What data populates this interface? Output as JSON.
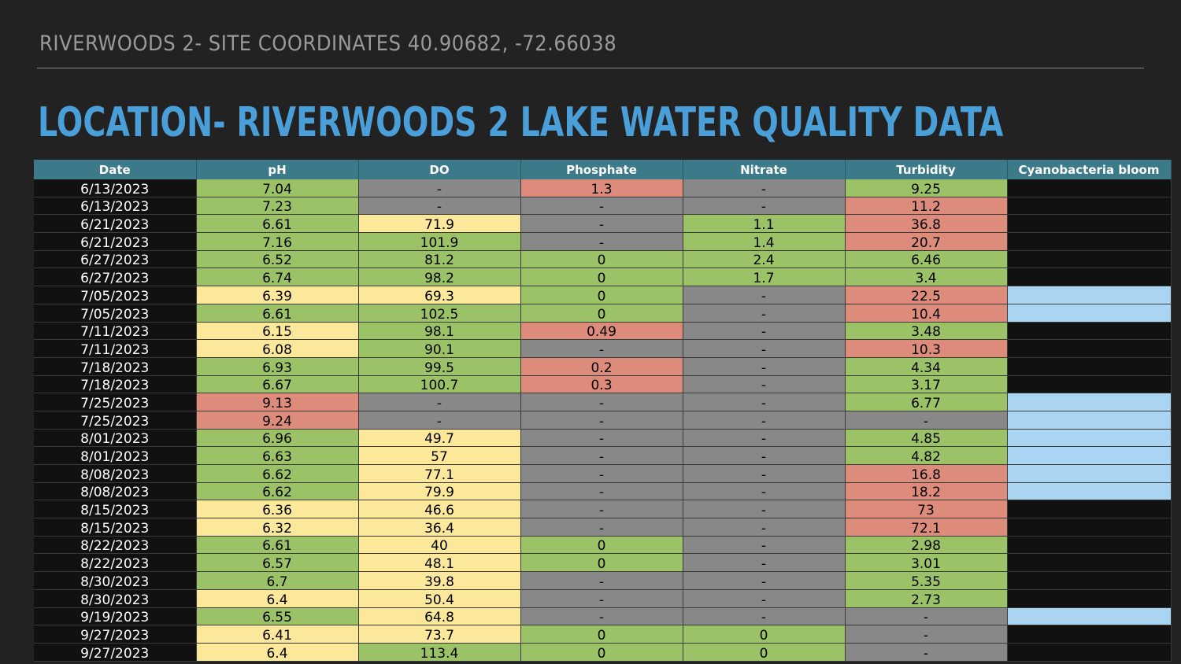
{
  "header": {
    "subtitle": "RIVERWOODS 2- SITE COORDINATES 40.90682, -72.66038",
    "title": "LOCATION- RIVERWOODS 2 LAKE WATER QUALITY DATA"
  },
  "status_colors": {
    "g": "#9bc266",
    "y": "#fbe89a",
    "r": "#dd8b7b",
    "x": "#888888",
    "b": "#a9d5f3",
    "k": "#111111"
  },
  "table": {
    "columns": [
      "Date",
      "pH",
      "DO",
      "Phosphate",
      "Nitrate",
      "Turbidity",
      "Cyanobacteria bloom"
    ],
    "rows": [
      {
        "date": "6/13/2023",
        "ph": "7.04",
        "ph_c": "g",
        "do": "-",
        "do_c": "x",
        "phos": "1.3",
        "phos_c": "r",
        "nit": "-",
        "nit_c": "x",
        "turb": "9.25",
        "turb_c": "g",
        "cyano": "",
        "cyano_c": "k"
      },
      {
        "date": "6/13/2023",
        "ph": "7.23",
        "ph_c": "g",
        "do": "-",
        "do_c": "x",
        "phos": "-",
        "phos_c": "x",
        "nit": "-",
        "nit_c": "x",
        "turb": "11.2",
        "turb_c": "r",
        "cyano": "",
        "cyano_c": "k"
      },
      {
        "date": "6/21/2023",
        "ph": "6.61",
        "ph_c": "g",
        "do": "71.9",
        "do_c": "y",
        "phos": "-",
        "phos_c": "x",
        "nit": "1.1",
        "nit_c": "g",
        "turb": "36.8",
        "turb_c": "r",
        "cyano": "",
        "cyano_c": "k"
      },
      {
        "date": "6/21/2023",
        "ph": "7.16",
        "ph_c": "g",
        "do": "101.9",
        "do_c": "g",
        "phos": "-",
        "phos_c": "x",
        "nit": "1.4",
        "nit_c": "g",
        "turb": "20.7",
        "turb_c": "r",
        "cyano": "",
        "cyano_c": "k"
      },
      {
        "date": "6/27/2023",
        "ph": "6.52",
        "ph_c": "g",
        "do": "81.2",
        "do_c": "g",
        "phos": "0",
        "phos_c": "g",
        "nit": "2.4",
        "nit_c": "g",
        "turb": "6.46",
        "turb_c": "g",
        "cyano": "",
        "cyano_c": "k"
      },
      {
        "date": "6/27/2023",
        "ph": "6.74",
        "ph_c": "g",
        "do": "98.2",
        "do_c": "g",
        "phos": "0",
        "phos_c": "g",
        "nit": "1.7",
        "nit_c": "g",
        "turb": "3.4",
        "turb_c": "g",
        "cyano": "",
        "cyano_c": "k"
      },
      {
        "date": "7/05/2023",
        "ph": "6.39",
        "ph_c": "y",
        "do": "69.3",
        "do_c": "y",
        "phos": "0",
        "phos_c": "g",
        "nit": "-",
        "nit_c": "x",
        "turb": "22.5",
        "turb_c": "r",
        "cyano": "",
        "cyano_c": "b"
      },
      {
        "date": "7/05/2023",
        "ph": "6.61",
        "ph_c": "g",
        "do": "102.5",
        "do_c": "g",
        "phos": "0",
        "phos_c": "g",
        "nit": "-",
        "nit_c": "x",
        "turb": "10.4",
        "turb_c": "r",
        "cyano": "",
        "cyano_c": "b"
      },
      {
        "date": "7/11/2023",
        "ph": "6.15",
        "ph_c": "y",
        "do": "98.1",
        "do_c": "g",
        "phos": "0.49",
        "phos_c": "r",
        "nit": "-",
        "nit_c": "x",
        "turb": "3.48",
        "turb_c": "g",
        "cyano": "",
        "cyano_c": "k"
      },
      {
        "date": "7/11/2023",
        "ph": "6.08",
        "ph_c": "y",
        "do": "90.1",
        "do_c": "g",
        "phos": "-",
        "phos_c": "x",
        "nit": "-",
        "nit_c": "x",
        "turb": "10.3",
        "turb_c": "r",
        "cyano": "",
        "cyano_c": "k"
      },
      {
        "date": "7/18/2023",
        "ph": "6.93",
        "ph_c": "g",
        "do": "99.5",
        "do_c": "g",
        "phos": "0.2",
        "phos_c": "r",
        "nit": "-",
        "nit_c": "x",
        "turb": "4.34",
        "turb_c": "g",
        "cyano": "",
        "cyano_c": "k"
      },
      {
        "date": "7/18/2023",
        "ph": "6.67",
        "ph_c": "g",
        "do": "100.7",
        "do_c": "g",
        "phos": "0.3",
        "phos_c": "r",
        "nit": "-",
        "nit_c": "x",
        "turb": "3.17",
        "turb_c": "g",
        "cyano": "",
        "cyano_c": "k"
      },
      {
        "date": "7/25/2023",
        "ph": "9.13",
        "ph_c": "r",
        "do": "-",
        "do_c": "x",
        "phos": "-",
        "phos_c": "x",
        "nit": "-",
        "nit_c": "x",
        "turb": "6.77",
        "turb_c": "g",
        "cyano": "",
        "cyano_c": "b"
      },
      {
        "date": "7/25/2023",
        "ph": "9.24",
        "ph_c": "r",
        "do": "-",
        "do_c": "x",
        "phos": "-",
        "phos_c": "x",
        "nit": "-",
        "nit_c": "x",
        "turb": "-",
        "turb_c": "x",
        "cyano": "",
        "cyano_c": "b"
      },
      {
        "date": "8/01/2023",
        "ph": "6.96",
        "ph_c": "g",
        "do": "49.7",
        "do_c": "y",
        "phos": "-",
        "phos_c": "x",
        "nit": "-",
        "nit_c": "x",
        "turb": "4.85",
        "turb_c": "g",
        "cyano": "",
        "cyano_c": "b"
      },
      {
        "date": "8/01/2023",
        "ph": "6.63",
        "ph_c": "g",
        "do": "57",
        "do_c": "y",
        "phos": "-",
        "phos_c": "x",
        "nit": "-",
        "nit_c": "x",
        "turb": "4.82",
        "turb_c": "g",
        "cyano": "",
        "cyano_c": "b"
      },
      {
        "date": "8/08/2023",
        "ph": "6.62",
        "ph_c": "g",
        "do": "77.1",
        "do_c": "y",
        "phos": "-",
        "phos_c": "x",
        "nit": "-",
        "nit_c": "x",
        "turb": "16.8",
        "turb_c": "r",
        "cyano": "",
        "cyano_c": "b"
      },
      {
        "date": "8/08/2023",
        "ph": "6.62",
        "ph_c": "g",
        "do": "79.9",
        "do_c": "y",
        "phos": "-",
        "phos_c": "x",
        "nit": "-",
        "nit_c": "x",
        "turb": "18.2",
        "turb_c": "r",
        "cyano": "",
        "cyano_c": "b"
      },
      {
        "date": "8/15/2023",
        "ph": "6.36",
        "ph_c": "y",
        "do": "46.6",
        "do_c": "y",
        "phos": "-",
        "phos_c": "x",
        "nit": "-",
        "nit_c": "x",
        "turb": "73",
        "turb_c": "r",
        "cyano": "",
        "cyano_c": "k"
      },
      {
        "date": "8/15/2023",
        "ph": "6.32",
        "ph_c": "y",
        "do": "36.4",
        "do_c": "y",
        "phos": "-",
        "phos_c": "x",
        "nit": "-",
        "nit_c": "x",
        "turb": "72.1",
        "turb_c": "r",
        "cyano": "",
        "cyano_c": "k"
      },
      {
        "date": "8/22/2023",
        "ph": "6.61",
        "ph_c": "g",
        "do": "40",
        "do_c": "y",
        "phos": "0",
        "phos_c": "g",
        "nit": "-",
        "nit_c": "x",
        "turb": "2.98",
        "turb_c": "g",
        "cyano": "",
        "cyano_c": "k"
      },
      {
        "date": "8/22/2023",
        "ph": "6.57",
        "ph_c": "g",
        "do": "48.1",
        "do_c": "y",
        "phos": "0",
        "phos_c": "g",
        "nit": "-",
        "nit_c": "x",
        "turb": "3.01",
        "turb_c": "g",
        "cyano": "",
        "cyano_c": "k"
      },
      {
        "date": "8/30/2023",
        "ph": "6.7",
        "ph_c": "g",
        "do": "39.8",
        "do_c": "y",
        "phos": "-",
        "phos_c": "x",
        "nit": "-",
        "nit_c": "x",
        "turb": "5.35",
        "turb_c": "g",
        "cyano": "",
        "cyano_c": "k"
      },
      {
        "date": "8/30/2023",
        "ph": "6.4",
        "ph_c": "y",
        "do": "50.4",
        "do_c": "y",
        "phos": "-",
        "phos_c": "x",
        "nit": "-",
        "nit_c": "x",
        "turb": "2.73",
        "turb_c": "g",
        "cyano": "",
        "cyano_c": "k"
      },
      {
        "date": "9/19/2023",
        "ph": "6.55",
        "ph_c": "g",
        "do": "64.8",
        "do_c": "y",
        "phos": "-",
        "phos_c": "x",
        "nit": "-",
        "nit_c": "x",
        "turb": "-",
        "turb_c": "x",
        "cyano": "",
        "cyano_c": "b"
      },
      {
        "date": "9/27/2023",
        "ph": "6.41",
        "ph_c": "y",
        "do": "73.7",
        "do_c": "y",
        "phos": "0",
        "phos_c": "g",
        "nit": "0",
        "nit_c": "g",
        "turb": "-",
        "turb_c": "x",
        "cyano": "",
        "cyano_c": "k"
      },
      {
        "date": "9/27/2023",
        "ph": "6.4",
        "ph_c": "y",
        "do": "113.4",
        "do_c": "g",
        "phos": "0",
        "phos_c": "g",
        "nit": "0",
        "nit_c": "g",
        "turb": "-",
        "turb_c": "x",
        "cyano": "",
        "cyano_c": "k"
      }
    ]
  }
}
